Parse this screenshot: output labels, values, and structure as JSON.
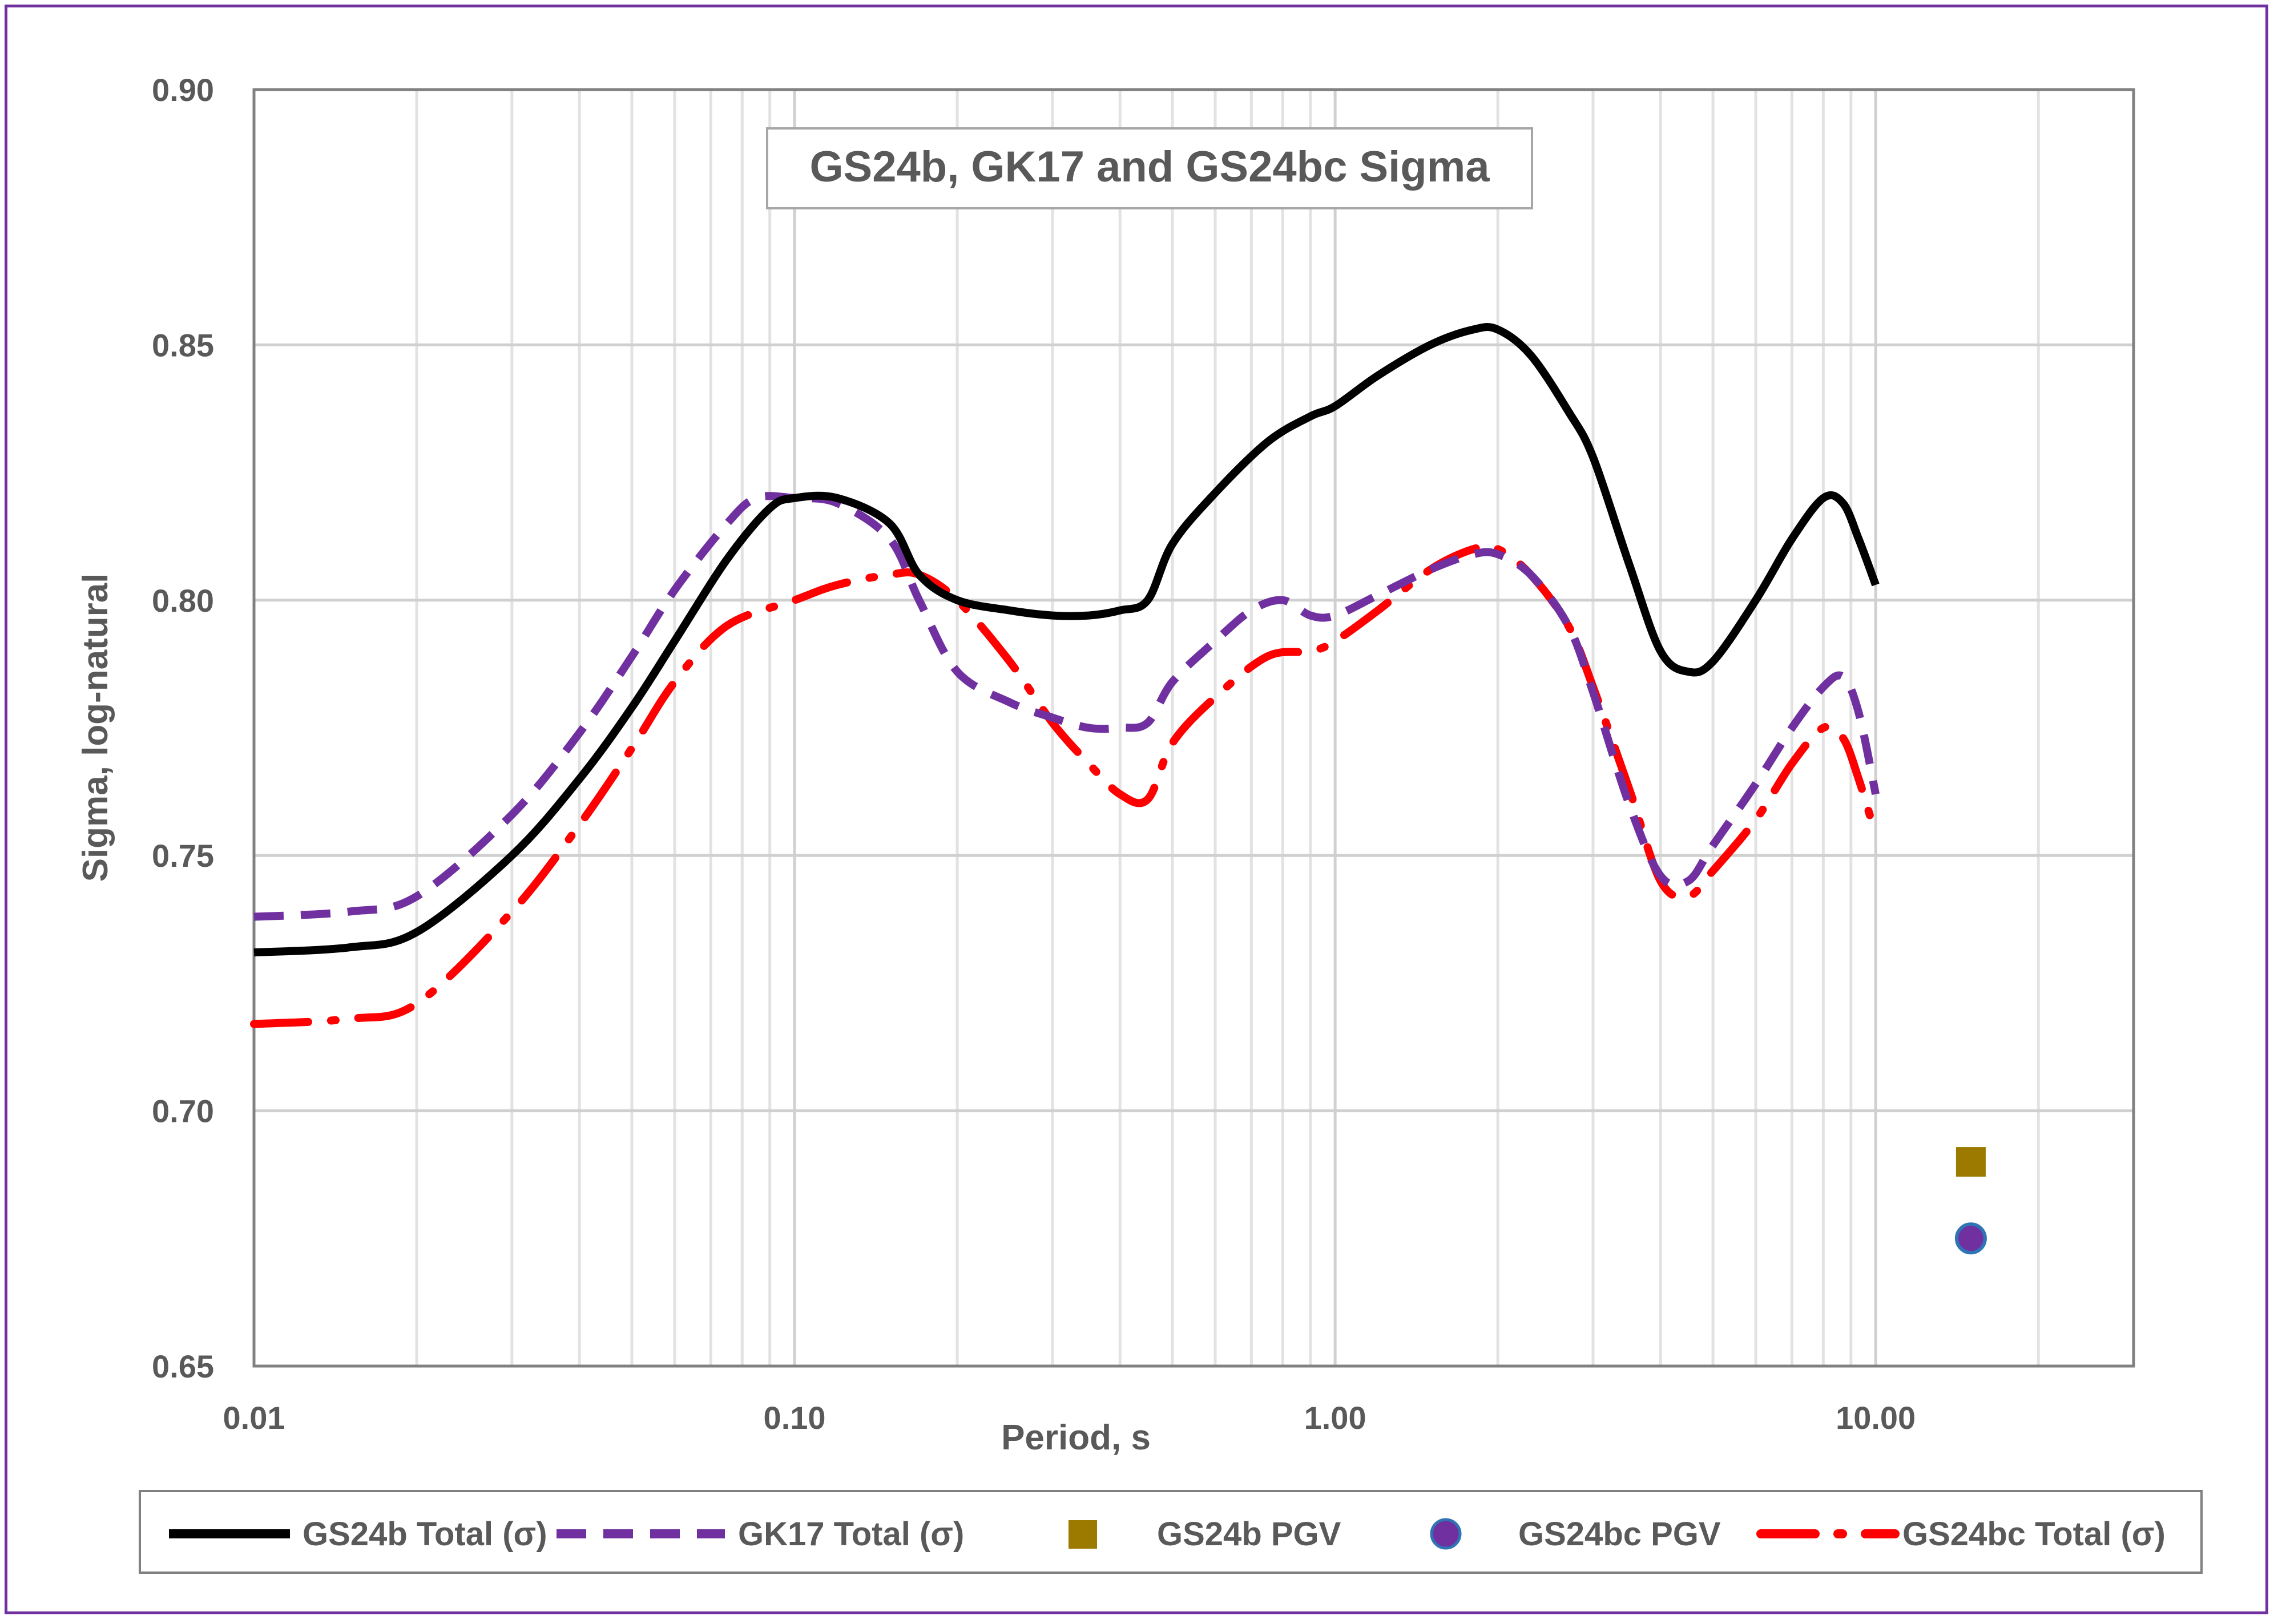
{
  "chart_data": {
    "type": "line",
    "title": "GS24b, GK17 and GS24bc Sigma",
    "xlabel": "Period, s",
    "ylabel": "Sigma, log-natural",
    "xscale": "log",
    "xlim": [
      0.01,
      30
    ],
    "ylim": [
      0.65,
      0.9
    ],
    "x_ticks": [
      0.01,
      0.1,
      1,
      10
    ],
    "x_tick_labels": [
      "0.01",
      "0.10",
      "1.00",
      "10.00"
    ],
    "y_ticks": [
      0.65,
      0.7,
      0.75,
      0.8,
      0.85,
      0.9
    ],
    "y_tick_labels": [
      "0.65",
      "0.70",
      "0.75",
      "0.80",
      "0.85",
      "0.90"
    ],
    "grid": true,
    "legend_position": "bottom",
    "series": [
      {
        "name": "GS24b Total (σ)",
        "style": "solid",
        "color": "#000000",
        "x": [
          0.01,
          0.015,
          0.02,
          0.03,
          0.04,
          0.05,
          0.06,
          0.075,
          0.09,
          0.1,
          0.12,
          0.15,
          0.17,
          0.2,
          0.25,
          0.3,
          0.35,
          0.4,
          0.45,
          0.5,
          0.6,
          0.75,
          0.9,
          1.0,
          1.2,
          1.5,
          1.8,
          2.0,
          2.3,
          2.7,
          3.0,
          3.5,
          4.0,
          4.5,
          5.0,
          6.0,
          7.0,
          8.0,
          8.7,
          9.3,
          10.0
        ],
        "y": [
          0.731,
          0.732,
          0.735,
          0.75,
          0.765,
          0.779,
          0.792,
          0.808,
          0.818,
          0.82,
          0.82,
          0.815,
          0.805,
          0.8,
          0.798,
          0.797,
          0.797,
          0.798,
          0.8,
          0.811,
          0.821,
          0.831,
          0.836,
          0.838,
          0.844,
          0.85,
          0.853,
          0.853,
          0.848,
          0.837,
          0.828,
          0.807,
          0.79,
          0.786,
          0.788,
          0.8,
          0.812,
          0.82,
          0.819,
          0.812,
          0.803
        ]
      },
      {
        "name": "GK17 Total (σ)",
        "style": "dashed",
        "color": "#7030a0",
        "x": [
          0.01,
          0.015,
          0.02,
          0.03,
          0.04,
          0.05,
          0.06,
          0.075,
          0.085,
          0.1,
          0.12,
          0.15,
          0.17,
          0.2,
          0.25,
          0.3,
          0.35,
          0.4,
          0.45,
          0.5,
          0.6,
          0.7,
          0.8,
          0.9,
          1.0,
          1.2,
          1.5,
          1.8,
          2.0,
          2.3,
          2.7,
          3.0,
          3.5,
          4.0,
          4.5,
          5.0,
          6.0,
          7.0,
          8.0,
          8.7,
          9.3,
          10.0
        ],
        "y": [
          0.738,
          0.739,
          0.742,
          0.758,
          0.774,
          0.789,
          0.802,
          0.815,
          0.82,
          0.82,
          0.819,
          0.812,
          0.8,
          0.786,
          0.78,
          0.777,
          0.775,
          0.775,
          0.776,
          0.784,
          0.792,
          0.798,
          0.8,
          0.797,
          0.797,
          0.801,
          0.806,
          0.809,
          0.809,
          0.805,
          0.795,
          0.782,
          0.76,
          0.746,
          0.745,
          0.752,
          0.764,
          0.775,
          0.783,
          0.785,
          0.778,
          0.762
        ]
      },
      {
        "name": "GS24bc Total (σ)",
        "style": "dash-dot",
        "color": "#ff0000",
        "x": [
          0.01,
          0.015,
          0.02,
          0.03,
          0.04,
          0.05,
          0.06,
          0.075,
          0.1,
          0.12,
          0.15,
          0.17,
          0.2,
          0.25,
          0.3,
          0.35,
          0.4,
          0.45,
          0.5,
          0.6,
          0.75,
          0.9,
          1.0,
          1.2,
          1.5,
          1.8,
          2.0,
          2.3,
          2.7,
          3.0,
          3.5,
          4.0,
          4.5,
          5.0,
          6.0,
          7.0,
          8.0,
          8.7,
          9.3,
          10.0
        ],
        "y": [
          0.717,
          0.718,
          0.721,
          0.739,
          0.756,
          0.771,
          0.784,
          0.795,
          0.8,
          0.803,
          0.805,
          0.805,
          0.8,
          0.788,
          0.776,
          0.768,
          0.762,
          0.761,
          0.772,
          0.781,
          0.789,
          0.79,
          0.792,
          0.798,
          0.806,
          0.81,
          0.81,
          0.805,
          0.795,
          0.783,
          0.763,
          0.745,
          0.742,
          0.747,
          0.757,
          0.768,
          0.775,
          0.773,
          0.765,
          0.754
        ]
      },
      {
        "name": "GS24b PGV",
        "style": "marker-square",
        "color": "#9c7a00",
        "x": [
          15
        ],
        "y": [
          0.69
        ]
      },
      {
        "name": "GS24bc PGV",
        "style": "marker-circle",
        "color": "#7030a0",
        "edge_color": "#2f75b5",
        "x": [
          15
        ],
        "y": [
          0.675
        ]
      }
    ],
    "legend": [
      "GS24b Total (σ)",
      "GK17 Total (σ)",
      "GS24b PGV",
      "GS24bc PGV",
      "GS24bc Total (σ)"
    ]
  }
}
